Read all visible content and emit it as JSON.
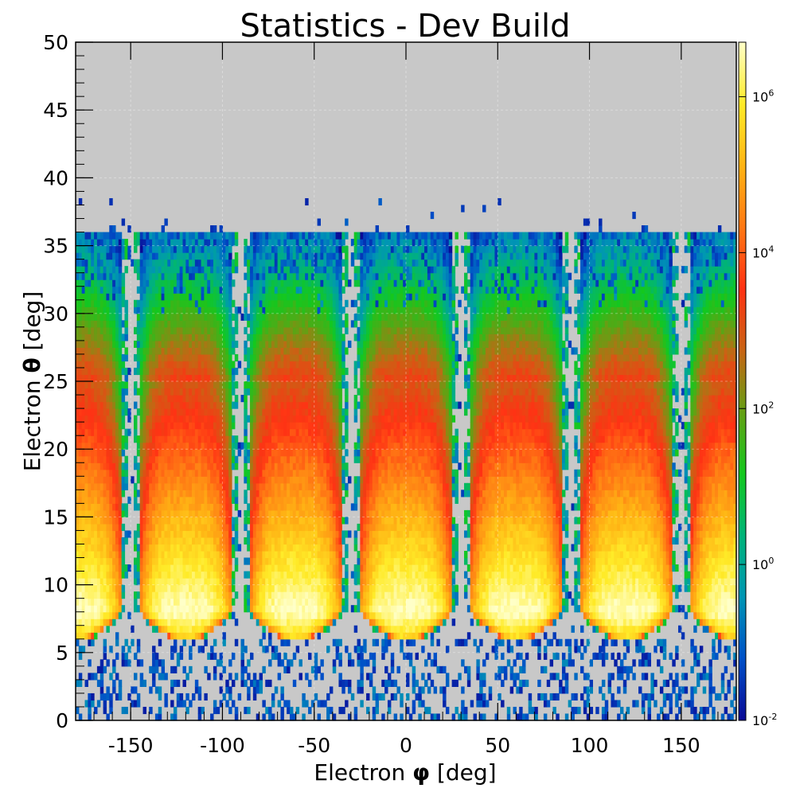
{
  "chart_data": {
    "type": "heatmap",
    "title": "Statistics - Dev Build",
    "xlabel_prefix": "Electron ",
    "xlabel_symbol": "φ",
    "xlabel_suffix": " [deg]",
    "ylabel_prefix": "Electron ",
    "ylabel_symbol": "θ",
    "ylabel_suffix": " [deg]",
    "xlim": [
      -180,
      180
    ],
    "ylim": [
      0,
      50
    ],
    "x_ticks": [
      -150,
      -100,
      -50,
      0,
      50,
      100,
      150
    ],
    "x_tick_labels": [
      "-150",
      "-100",
      "-50",
      "0",
      "50",
      "100",
      "150"
    ],
    "y_ticks": [
      0,
      5,
      10,
      15,
      20,
      25,
      30,
      35,
      40,
      45,
      50
    ],
    "y_tick_labels": [
      "0",
      "5",
      "10",
      "15",
      "20",
      "25",
      "30",
      "35",
      "40",
      "45",
      "50"
    ],
    "grid": true,
    "bins": {
      "x": 216,
      "y": 100
    },
    "sectors": {
      "centers_deg": [
        -180,
        -120,
        -60,
        0,
        60,
        120,
        180
      ],
      "half_width_deg": 24,
      "counts_peak_theta_deg": 8,
      "coverage_theta_deg": [
        6,
        36
      ],
      "sparse_band_theta_deg": [
        0,
        6
      ],
      "sparse_band_edges_theta_deg": [
        36,
        38
      ]
    },
    "colorbar": {
      "scale": "log",
      "min_exponent": -2,
      "max_exponent": 6.7,
      "ticks": [
        {
          "base": "10",
          "exp": "-2",
          "value": -2
        },
        {
          "base": "10",
          "exp": "0",
          "value": 0
        },
        {
          "base": "10",
          "exp": "2",
          "value": 2
        },
        {
          "base": "10",
          "exp": "4",
          "value": 4
        },
        {
          "base": "10",
          "exp": "6",
          "value": 6
        }
      ]
    },
    "colors": {
      "background": "#c8c8c8",
      "palette": [
        "#0a0a96",
        "#0050c8",
        "#0096b4",
        "#00b478",
        "#14c81e",
        "#64a014",
        "#c86414",
        "#ff3214",
        "#ff7814",
        "#ffb414",
        "#ffeb28",
        "#ffffc8"
      ]
    }
  }
}
